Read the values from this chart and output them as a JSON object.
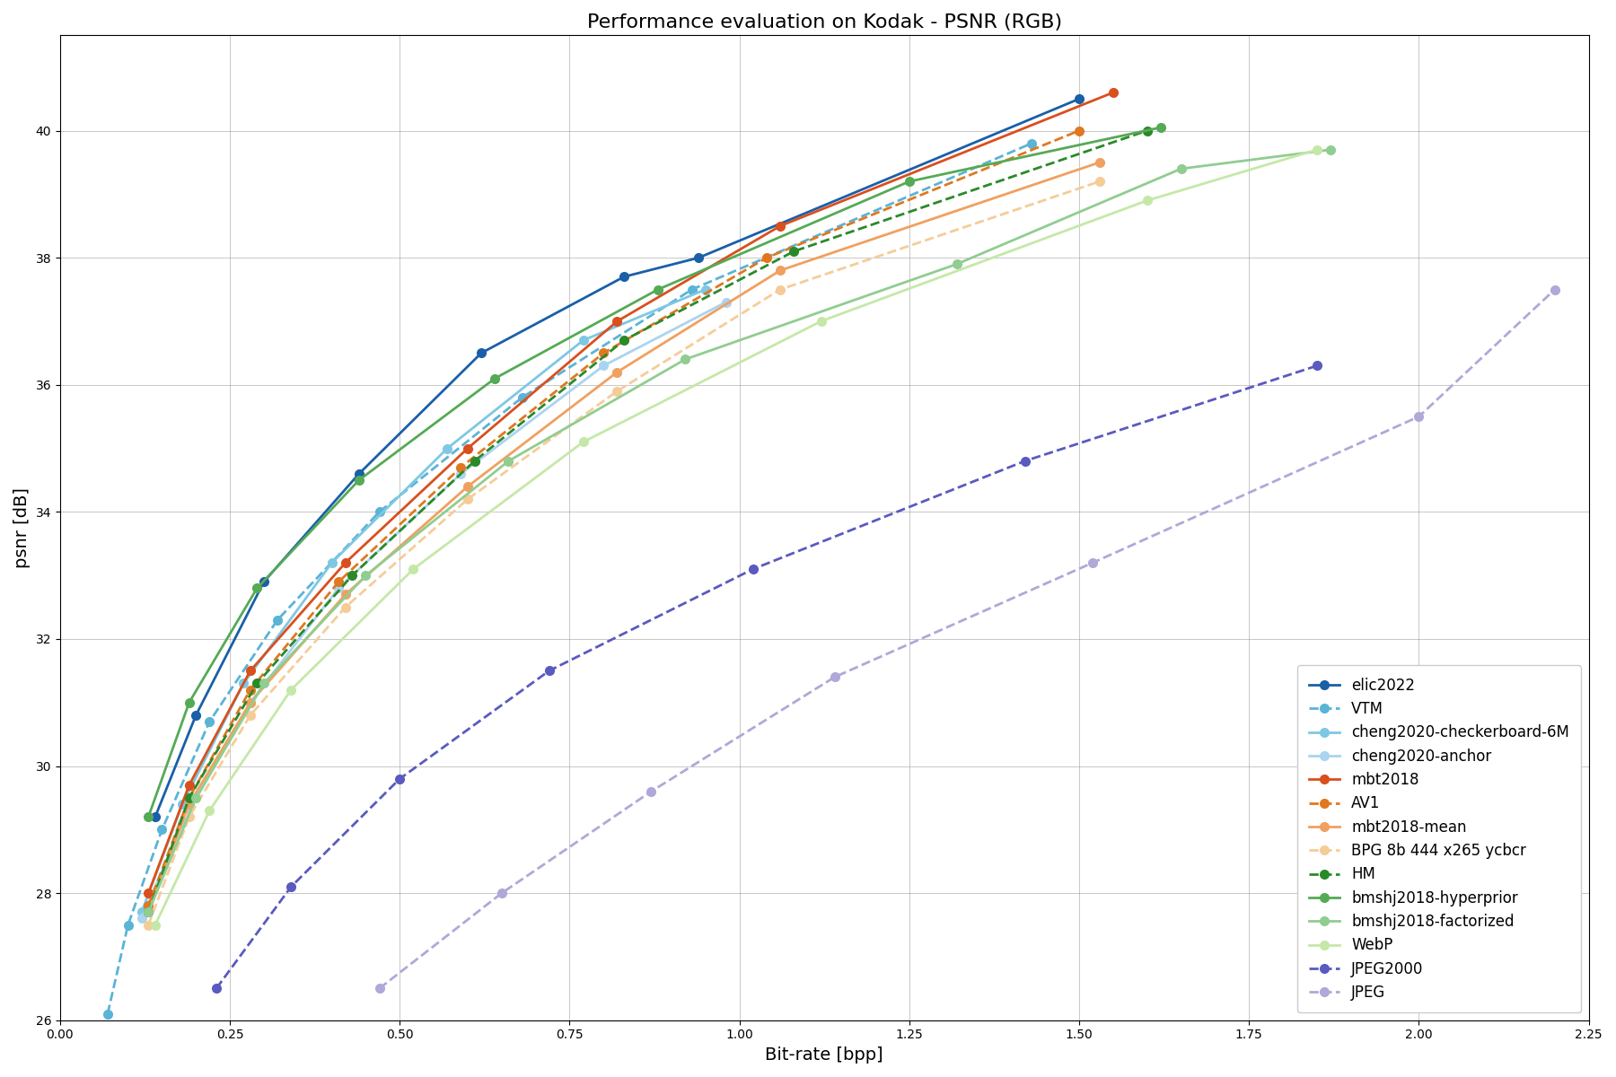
{
  "title": "Performance evaluation on Kodak - PSNR (RGB)",
  "xlabel": "Bit-rate [bpp]",
  "ylabel": "psnr [dB]",
  "xlim": [
    0.0,
    2.25
  ],
  "ylim": [
    26,
    41.5
  ],
  "xticks": [
    0.0,
    0.25,
    0.5,
    0.75,
    1.0,
    1.25,
    1.5,
    1.75,
    2.0,
    2.25
  ],
  "yticks": [
    26,
    28,
    30,
    32,
    34,
    36,
    38,
    40
  ],
  "codecs": [
    {
      "name": "elic2022",
      "color": "#1a5fa8",
      "linestyle": "-",
      "marker": "o",
      "bpp": [
        0.14,
        0.2,
        0.3,
        0.44,
        0.62,
        0.83,
        0.94,
        1.5
      ],
      "psnr": [
        29.2,
        30.8,
        32.9,
        34.6,
        36.5,
        37.7,
        38.0,
        40.5
      ]
    },
    {
      "name": "VTM",
      "color": "#5ab4d6",
      "linestyle": "--",
      "marker": "o",
      "bpp": [
        0.07,
        0.1,
        0.15,
        0.22,
        0.32,
        0.47,
        0.68,
        0.93,
        1.43
      ],
      "psnr": [
        26.1,
        27.5,
        29.0,
        30.7,
        32.3,
        34.0,
        35.8,
        37.5,
        39.8
      ]
    },
    {
      "name": "cheng2020-checkerboard-6M",
      "color": "#7ec8e3",
      "linestyle": "-",
      "marker": "o",
      "bpp": [
        0.12,
        0.18,
        0.27,
        0.4,
        0.57,
        0.77,
        0.95
      ],
      "psnr": [
        27.7,
        29.4,
        31.3,
        33.2,
        35.0,
        36.7,
        37.5
      ]
    },
    {
      "name": "cheng2020-anchor",
      "color": "#aad4f0",
      "linestyle": "-",
      "marker": "o",
      "bpp": [
        0.12,
        0.18,
        0.28,
        0.41,
        0.59,
        0.8,
        0.98
      ],
      "psnr": [
        27.6,
        29.1,
        31.0,
        32.8,
        34.6,
        36.3,
        37.3
      ]
    },
    {
      "name": "mbt2018",
      "color": "#d94f1e",
      "linestyle": "-",
      "marker": "o",
      "bpp": [
        0.13,
        0.19,
        0.28,
        0.42,
        0.6,
        0.82,
        1.06,
        1.55
      ],
      "psnr": [
        28.0,
        29.7,
        31.5,
        33.2,
        35.0,
        37.0,
        38.5,
        40.6
      ]
    },
    {
      "name": "AV1",
      "color": "#e07820",
      "linestyle": "--",
      "marker": "o",
      "bpp": [
        0.13,
        0.19,
        0.28,
        0.41,
        0.59,
        0.8,
        1.04,
        1.5
      ],
      "psnr": [
        27.8,
        29.5,
        31.2,
        32.9,
        34.7,
        36.5,
        38.0,
        40.0
      ]
    },
    {
      "name": "mbt2018-mean",
      "color": "#f0a060",
      "linestyle": "-",
      "marker": "o",
      "bpp": [
        0.13,
        0.19,
        0.28,
        0.42,
        0.6,
        0.82,
        1.06,
        1.53
      ],
      "psnr": [
        27.7,
        29.4,
        31.0,
        32.7,
        34.4,
        36.2,
        37.8,
        39.5
      ]
    },
    {
      "name": "BPG 8b 444 x265 ycbcr",
      "color": "#f5cc98",
      "linestyle": "--",
      "marker": "o",
      "bpp": [
        0.13,
        0.19,
        0.28,
        0.42,
        0.6,
        0.82,
        1.06,
        1.53
      ],
      "psnr": [
        27.5,
        29.2,
        30.8,
        32.5,
        34.2,
        35.9,
        37.5,
        39.2
      ]
    },
    {
      "name": "HM",
      "color": "#2a8a2a",
      "linestyle": "--",
      "marker": "o",
      "bpp": [
        0.13,
        0.19,
        0.29,
        0.43,
        0.61,
        0.83,
        1.08,
        1.6
      ],
      "psnr": [
        27.7,
        29.5,
        31.3,
        33.0,
        34.8,
        36.7,
        38.1,
        40.0
      ]
    },
    {
      "name": "bmshj2018-hyperprior",
      "color": "#55aa55",
      "linestyle": "-",
      "marker": "o",
      "bpp": [
        0.13,
        0.19,
        0.29,
        0.44,
        0.64,
        0.88,
        1.25,
        1.62
      ],
      "psnr": [
        29.2,
        31.0,
        32.8,
        34.5,
        36.1,
        37.5,
        39.2,
        40.05
      ]
    },
    {
      "name": "bmshj2018-factorized",
      "color": "#90cd90",
      "linestyle": "-",
      "marker": "o",
      "bpp": [
        0.13,
        0.2,
        0.3,
        0.45,
        0.66,
        0.92,
        1.32,
        1.65,
        1.87
      ],
      "psnr": [
        27.7,
        29.5,
        31.3,
        33.0,
        34.8,
        36.4,
        37.9,
        39.4,
        39.7
      ]
    },
    {
      "name": "WebP",
      "color": "#c5e8a8",
      "linestyle": "-",
      "marker": "o",
      "bpp": [
        0.14,
        0.22,
        0.34,
        0.52,
        0.77,
        1.12,
        1.6,
        1.85
      ],
      "psnr": [
        27.5,
        29.3,
        31.2,
        33.1,
        35.1,
        37.0,
        38.9,
        39.7
      ]
    },
    {
      "name": "JPEG2000",
      "color": "#5a5ac0",
      "linestyle": "--",
      "marker": "o",
      "bpp": [
        0.23,
        0.34,
        0.5,
        0.72,
        1.02,
        1.42,
        1.85
      ],
      "psnr": [
        26.5,
        28.1,
        29.8,
        31.5,
        33.1,
        34.8,
        36.3
      ]
    },
    {
      "name": "JPEG",
      "color": "#b0a8d8",
      "linestyle": "--",
      "marker": "o",
      "bpp": [
        0.47,
        0.65,
        0.87,
        1.14,
        1.52,
        2.0,
        2.2
      ],
      "psnr": [
        26.5,
        28.0,
        29.6,
        31.4,
        33.2,
        35.5,
        37.5
      ]
    }
  ]
}
